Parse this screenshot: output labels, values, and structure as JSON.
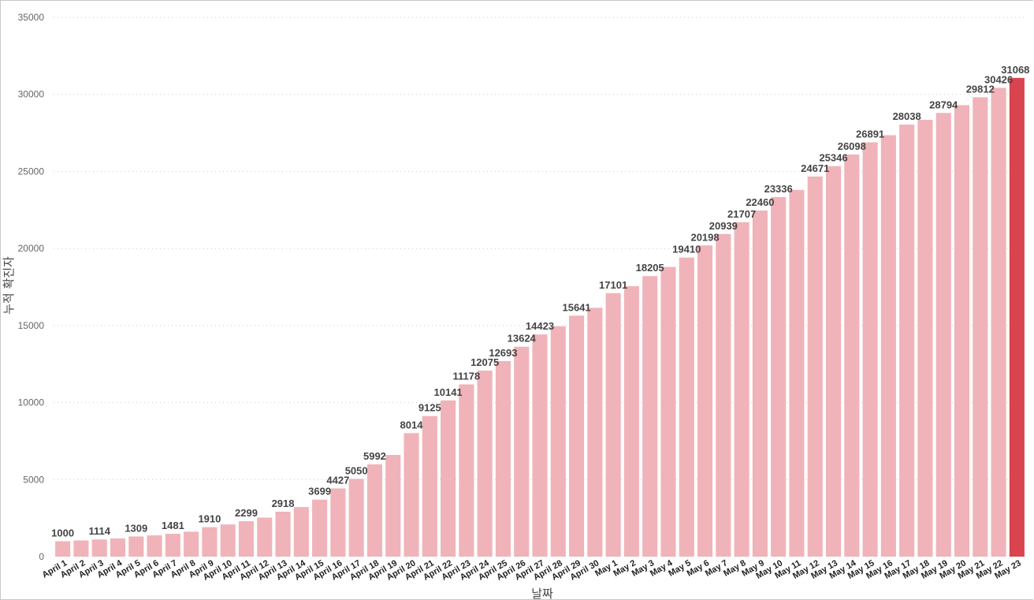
{
  "chart_data": {
    "type": "bar",
    "xlabel": "날짜",
    "ylabel": "누적 확진자",
    "ylim": [
      0,
      35000
    ],
    "yticks": [
      0,
      5000,
      10000,
      15000,
      20000,
      25000,
      30000,
      35000
    ],
    "grid": true,
    "colors": {
      "bar": "#f0b3b9",
      "highlight": "#d9444f"
    },
    "highlight_index": 52,
    "categories": [
      "April 1",
      "April 2",
      "April 3",
      "April 4",
      "April 5",
      "April 6",
      "April 7",
      "April 8",
      "April 9",
      "April 10",
      "April 11",
      "April 12",
      "April 13",
      "April 14",
      "April 15",
      "April 16",
      "April 17",
      "April 18",
      "April 19",
      "April 20",
      "April 21",
      "April 22",
      "April 23",
      "April 24",
      "April 25",
      "April 26",
      "April 27",
      "April 28",
      "April 29",
      "April 30",
      "May 1",
      "May 2",
      "May 3",
      "May 4",
      "May 5",
      "May 6",
      "May 7",
      "May 8",
      "May 9",
      "May 10",
      "May 11",
      "May 12",
      "May 13",
      "May 14",
      "May 15",
      "May 16",
      "May 17",
      "May 18",
      "May 19",
      "May 20",
      "May 21",
      "May 22",
      "May 23"
    ],
    "values": [
      1000,
      1050,
      1114,
      1180,
      1309,
      1380,
      1481,
      1620,
      1910,
      2090,
      2299,
      2530,
      2918,
      3220,
      3699,
      4427,
      5050,
      5992,
      6600,
      8014,
      9125,
      10141,
      11178,
      12075,
      12693,
      13624,
      14423,
      14950,
      15641,
      16150,
      17101,
      17550,
      18205,
      18800,
      19410,
      20198,
      20939,
      21707,
      22460,
      23336,
      23800,
      24671,
      25346,
      26098,
      26891,
      27350,
      28038,
      28350,
      28794,
      29300,
      29812,
      30426,
      31068
    ],
    "data_labels": [
      {
        "index": 0,
        "text": "1000"
      },
      {
        "index": 2,
        "text": "1114"
      },
      {
        "index": 4,
        "text": "1309"
      },
      {
        "index": 6,
        "text": "1481"
      },
      {
        "index": 8,
        "text": "1910"
      },
      {
        "index": 10,
        "text": "2299"
      },
      {
        "index": 12,
        "text": "2918"
      },
      {
        "index": 14,
        "text": "3699"
      },
      {
        "index": 15,
        "text": "4427"
      },
      {
        "index": 16,
        "text": "5050"
      },
      {
        "index": 17,
        "text": "5992"
      },
      {
        "index": 19,
        "text": "8014"
      },
      {
        "index": 20,
        "text": "9125"
      },
      {
        "index": 21,
        "text": "10141"
      },
      {
        "index": 22,
        "text": "11178"
      },
      {
        "index": 23,
        "text": "12075"
      },
      {
        "index": 24,
        "text": "12693"
      },
      {
        "index": 25,
        "text": "13624"
      },
      {
        "index": 26,
        "text": "14423"
      },
      {
        "index": 28,
        "text": "15641"
      },
      {
        "index": 30,
        "text": "17101"
      },
      {
        "index": 32,
        "text": "18205"
      },
      {
        "index": 34,
        "text": "19410"
      },
      {
        "index": 35,
        "text": "20198"
      },
      {
        "index": 36,
        "text": "20939"
      },
      {
        "index": 37,
        "text": "21707"
      },
      {
        "index": 38,
        "text": "22460"
      },
      {
        "index": 39,
        "text": "23336"
      },
      {
        "index": 41,
        "text": "24671"
      },
      {
        "index": 42,
        "text": "25346"
      },
      {
        "index": 43,
        "text": "26098"
      },
      {
        "index": 44,
        "text": "26891"
      },
      {
        "index": 46,
        "text": "28038"
      },
      {
        "index": 48,
        "text": "28794"
      },
      {
        "index": 50,
        "text": "29812"
      },
      {
        "index": 51,
        "text": "30426"
      },
      {
        "index": 52,
        "text": "31068"
      }
    ]
  }
}
